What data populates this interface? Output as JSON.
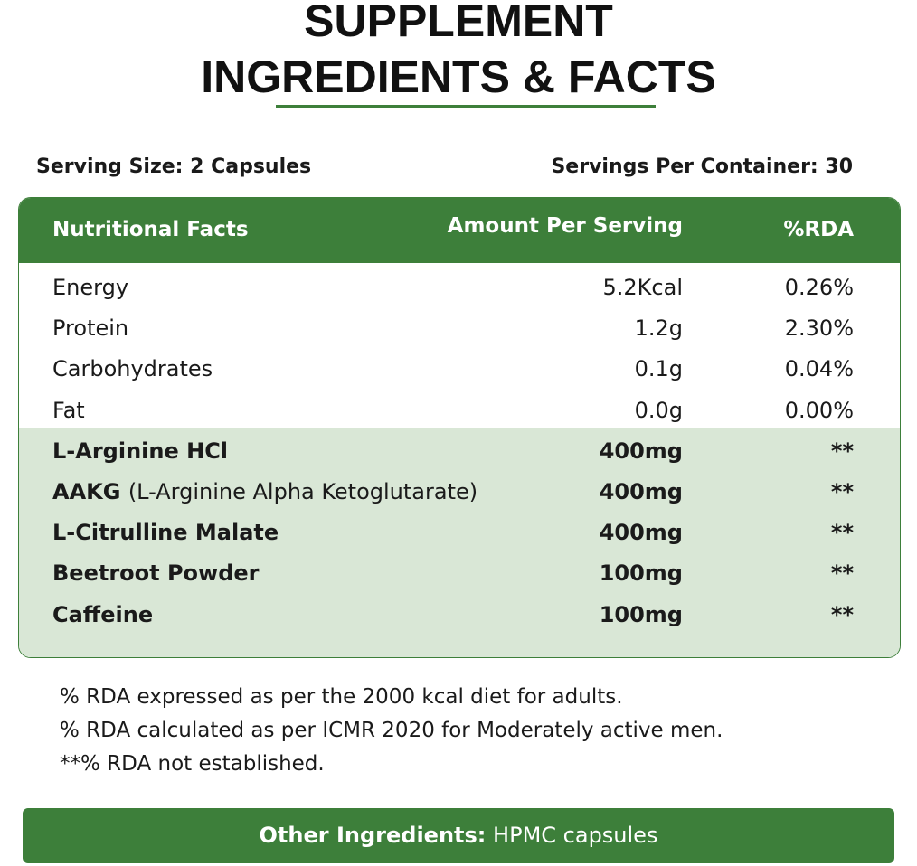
{
  "header": {
    "title_lines": [
      "SUPPLEMENT",
      "INGREDIENTS & FACTS"
    ]
  },
  "serving": {
    "size": "Serving Size: 2 Capsules",
    "per_container": "Servings Per Container: 30"
  },
  "table": {
    "columns": [
      "Nutritional Facts",
      "Amount Per Serving",
      "%RDA"
    ],
    "nutrients": [
      {
        "name": "Energy",
        "amount": "5.2Kcal",
        "rda": "0.26%"
      },
      {
        "name": "Protein",
        "amount": "1.2g",
        "rda": "2.30%"
      },
      {
        "name": "Carbohydrates",
        "amount": "0.1g",
        "rda": "0.04%"
      },
      {
        "name": "Fat",
        "amount": "0.0g",
        "rda": "0.00%"
      }
    ],
    "ingredients": [
      {
        "name": "L-Arginine HCl",
        "amount": "400mg",
        "rda": "**"
      },
      {
        "name": "AAKG",
        "note": "(L-Arginine Alpha Ketoglutarate)",
        "amount": "400mg",
        "rda": "**"
      },
      {
        "name": "L-Citrulline Malate",
        "amount": "400mg",
        "rda": "**"
      },
      {
        "name": "Beetroot Powder",
        "amount": "100mg",
        "rda": "**"
      },
      {
        "name": "Caffeine",
        "amount": "100mg",
        "rda": "**"
      }
    ]
  },
  "footnotes": [
    "% RDA expressed as per the 2000 kcal diet for adults.",
    "% RDA calculated as per ICMR 2020 for Moderately active men.",
    "**% RDA not established."
  ],
  "other": {
    "label": "Other Ingredients:",
    "value": "HPMC capsules"
  }
}
